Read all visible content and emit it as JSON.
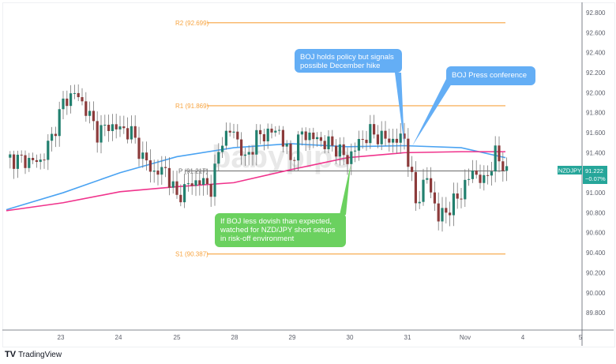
{
  "chart_data": {
    "type": "candlestick",
    "symbol": "NZDJPY",
    "last_price": "91.222",
    "change": "−0.07%",
    "y_ticks": [
      "92.800",
      "92.600",
      "92.400",
      "92.200",
      "92.000",
      "91.800",
      "91.600",
      "91.400",
      "91.000",
      "90.800",
      "90.600",
      "90.400",
      "90.200",
      "90.000",
      "89.800"
    ],
    "ylim": [
      89.7,
      92.9
    ],
    "x_ticks": [
      "23",
      "24",
      "25",
      "28",
      "29",
      "30",
      "31",
      "Nov",
      "4",
      "5"
    ],
    "closes": [
      91.35,
      91.33,
      91.32,
      91.31,
      91.55,
      91.9,
      92.0,
      91.84,
      91.6,
      91.67,
      91.64,
      91.6,
      91.35,
      91.2,
      91.23,
      90.95,
      91.08,
      91.12,
      91.05,
      91.55,
      91.62,
      91.32,
      91.55,
      91.6,
      91.62,
      91.32,
      91.6,
      91.55,
      91.5,
      91.45,
      91.33,
      91.5,
      91.6,
      91.55,
      91.52,
      91.55,
      90.9,
      91.15,
      90.75,
      90.85,
      91.0,
      91.22,
      91.1,
      91.38,
      91.22
    ],
    "ma_blue": [
      90.83,
      91.0,
      91.2,
      91.36,
      91.45,
      91.49,
      91.46,
      91.47,
      91.45,
      91.35
    ],
    "ma_pink": [
      90.82,
      90.9,
      91.01,
      91.06,
      91.1,
      91.23,
      91.35,
      91.4,
      91.41,
      91.41
    ],
    "levels": [
      {
        "label": "R2 (92.699)",
        "value": 92.699,
        "color": "#f7a440"
      },
      {
        "label": "R1 (91.869)",
        "value": 91.869,
        "color": "#f7a440"
      },
      {
        "label": "P (91.217)",
        "value": 91.217,
        "color": "#555555"
      },
      {
        "label": "S1 (90.387)",
        "value": 90.387,
        "color": "#f7a440"
      }
    ],
    "colors": {
      "up": "#22806f",
      "down": "#8c3b3b",
      "ma_blue": "#4aa3f2",
      "ma_pink": "#f0338c",
      "accent": "#26a69a"
    }
  },
  "annotations": {
    "boj_hold": "BOJ holds policy but signals possible December hike",
    "boj_press": "BOJ Press conference",
    "green_note": "If BOJ less dovish than expected, watched for NZD/JPY short setups in risk-off environment"
  },
  "watermark": "babypips",
  "brand": "TradingView"
}
